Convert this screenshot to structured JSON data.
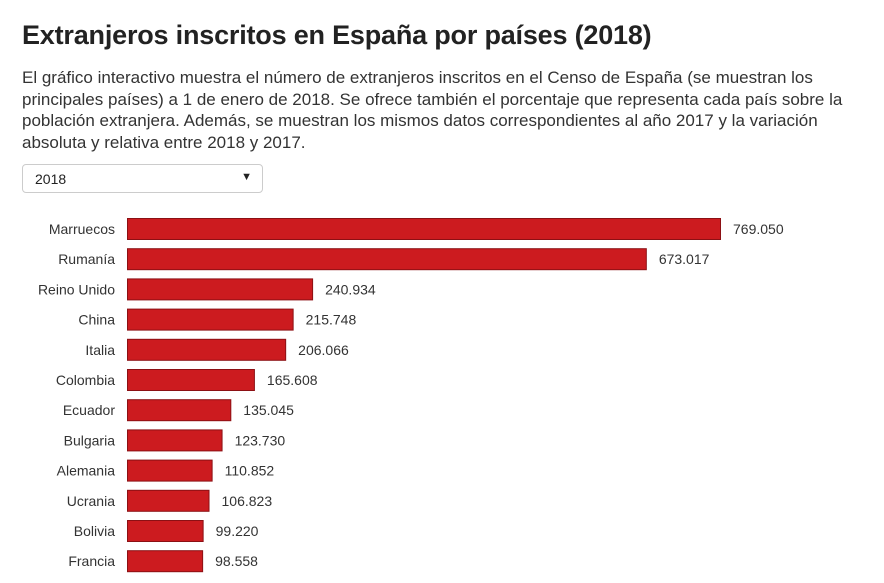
{
  "header": {
    "title": "Extranjeros inscritos en España por países (2018)",
    "description": "El gráfico interactivo muestra el número de extranjeros inscritos en el Censo de España (se muestran los principales países) a 1 de enero de 2018. Se ofrece también el porcentaje que representa cada país sobre la población extranjera. Además, se muestran los mismos datos correspondientes al año 2017 y la variación absoluta y relativa entre 2018 y 2017."
  },
  "year_select": {
    "selected": "2018",
    "icon": "caret-down-icon",
    "caret": "▼"
  },
  "colors": {
    "bar": "#cc1b1f",
    "bar_border": "#8c1014"
  },
  "chart_data": {
    "type": "bar",
    "orientation": "horizontal",
    "categories": [
      "Marruecos",
      "Rumanía",
      "Reino Unido",
      "China",
      "Italia",
      "Colombia",
      "Ecuador",
      "Bulgaria",
      "Alemania",
      "Ucrania",
      "Bolivia",
      "Francia"
    ],
    "values": [
      769050,
      673017,
      240934,
      215748,
      206066,
      165608,
      135045,
      123730,
      110852,
      106823,
      99220,
      98558
    ],
    "value_labels": [
      "769.050",
      "673.017",
      "240.934",
      "215.748",
      "206.066",
      "165.608",
      "135.045",
      "123.730",
      "110.852",
      "106.823",
      "99.220",
      "98.558"
    ],
    "xlim": [
      0,
      769050
    ],
    "grid": false,
    "legend": "none"
  }
}
